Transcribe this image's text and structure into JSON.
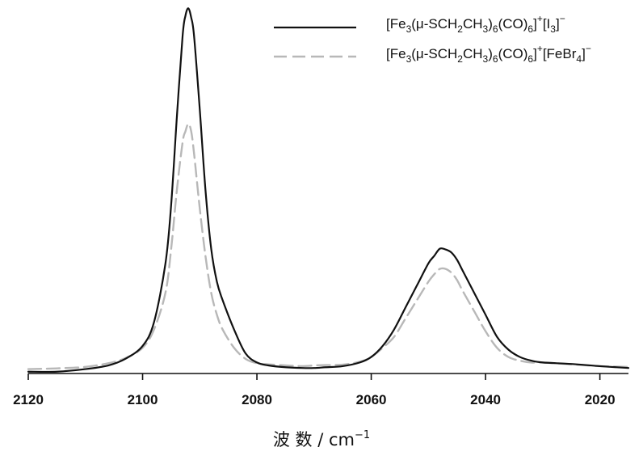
{
  "chart_data": {
    "type": "line",
    "title": "",
    "xlabel": "波 数 / cm⁻¹",
    "xlabel_parts": {
      "text": "波 数 / cm",
      "superscript": "−1"
    },
    "ylabel": "",
    "xlim": [
      2120,
      2015
    ],
    "x_reversed": true,
    "ylim": [
      0,
      1.0
    ],
    "y_ticks_shown": false,
    "grid": false,
    "legend_position": "top-right",
    "x_ticks": [
      2120,
      2100,
      2080,
      2060,
      2040,
      2020
    ],
    "x_tick_labels": [
      "2120",
      "2100",
      "2080",
      "2060",
      "2040",
      "2020"
    ],
    "series": [
      {
        "name": "[Fe3(μ-SCH2CH3)6(CO)6]+[I3]−",
        "legend_label_parts": [
          {
            "t": "[Fe"
          },
          {
            "t": "3",
            "sub": true
          },
          {
            "t": "(μ-SCH"
          },
          {
            "t": "2",
            "sub": true
          },
          {
            "t": "CH"
          },
          {
            "t": "3",
            "sub": true
          },
          {
            "t": ")"
          },
          {
            "t": "6",
            "sub": true
          },
          {
            "t": "(CO)"
          },
          {
            "t": "6",
            "sub": true
          },
          {
            "t": "]"
          },
          {
            "t": "+",
            "sup": true
          },
          {
            "t": "[I"
          },
          {
            "t": "3",
            "sub": true
          },
          {
            "t": "]"
          },
          {
            "t": "−",
            "sup": true
          }
        ],
        "color": "#111111",
        "style": "solid",
        "x": [
          2120,
          2115,
          2110,
          2106,
          2103,
          2100,
          2098,
          2096,
          2095,
          2094,
          2093,
          2092.5,
          2092,
          2091.5,
          2091,
          2090,
          2089,
          2088,
          2087,
          2086,
          2084,
          2082,
          2080,
          2078,
          2075,
          2072,
          2070,
          2068,
          2065,
          2062,
          2060,
          2058,
          2056,
          2054,
          2052,
          2050,
          2049,
          2048,
          2047,
          2046,
          2045,
          2044,
          2042,
          2040,
          2038,
          2036,
          2034,
          2032,
          2030,
          2025,
          2020,
          2015
        ],
        "y": [
          0.005,
          0.005,
          0.012,
          0.022,
          0.04,
          0.075,
          0.14,
          0.3,
          0.46,
          0.7,
          0.92,
          0.975,
          0.995,
          0.97,
          0.92,
          0.72,
          0.5,
          0.34,
          0.25,
          0.2,
          0.12,
          0.055,
          0.03,
          0.022,
          0.017,
          0.015,
          0.015,
          0.017,
          0.02,
          0.03,
          0.045,
          0.075,
          0.12,
          0.18,
          0.24,
          0.3,
          0.32,
          0.34,
          0.338,
          0.33,
          0.31,
          0.28,
          0.22,
          0.16,
          0.1,
          0.065,
          0.045,
          0.035,
          0.03,
          0.026,
          0.02,
          0.015
        ]
      },
      {
        "name": "[Fe3(μ-SCH2CH3)6(CO)6]+[FeBr4]−",
        "legend_label_parts": [
          {
            "t": "[Fe"
          },
          {
            "t": "3",
            "sub": true
          },
          {
            "t": "(μ-SCH"
          },
          {
            "t": "2",
            "sub": true
          },
          {
            "t": "CH"
          },
          {
            "t": "3",
            "sub": true
          },
          {
            "t": ")"
          },
          {
            "t": "6",
            "sub": true
          },
          {
            "t": "(CO)"
          },
          {
            "t": "6",
            "sub": true
          },
          {
            "t": "]"
          },
          {
            "t": "+",
            "sup": true
          },
          {
            "t": "[FeBr"
          },
          {
            "t": "4",
            "sub": true
          },
          {
            "t": "]"
          },
          {
            "t": "−",
            "sup": true
          }
        ],
        "color": "#b8b8b8",
        "style": "dashed",
        "x": [
          2120,
          2115,
          2110,
          2106,
          2103,
          2100,
          2098,
          2096,
          2095,
          2094,
          2093,
          2092.5,
          2092,
          2091.5,
          2091,
          2090,
          2089,
          2088,
          2087,
          2086,
          2084,
          2082,
          2080,
          2078,
          2075,
          2072,
          2070,
          2068,
          2065,
          2062,
          2060,
          2058,
          2056,
          2054,
          2052,
          2050,
          2049,
          2048,
          2047,
          2046,
          2045,
          2044,
          2042,
          2040,
          2038,
          2036,
          2034,
          2032,
          2030,
          2025,
          2020,
          2015
        ],
        "y": [
          0.012,
          0.014,
          0.018,
          0.028,
          0.042,
          0.07,
          0.12,
          0.22,
          0.34,
          0.5,
          0.63,
          0.66,
          0.68,
          0.66,
          0.6,
          0.45,
          0.32,
          0.22,
          0.16,
          0.12,
          0.07,
          0.04,
          0.028,
          0.025,
          0.022,
          0.02,
          0.022,
          0.023,
          0.024,
          0.032,
          0.045,
          0.07,
          0.1,
          0.15,
          0.2,
          0.25,
          0.27,
          0.285,
          0.285,
          0.275,
          0.255,
          0.225,
          0.17,
          0.115,
          0.07,
          0.045,
          0.035,
          0.03,
          0.03,
          0.025,
          0.02,
          0.018
        ]
      }
    ]
  }
}
